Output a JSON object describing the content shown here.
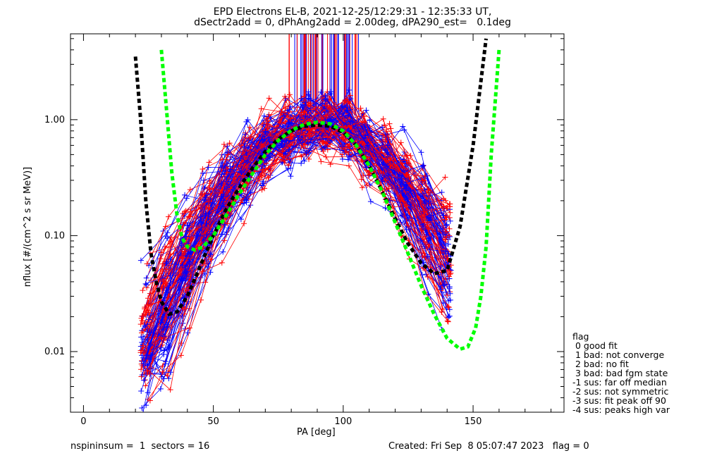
{
  "header": {
    "title_line1": "EPD Electrons EL-B, 2021-12-25/12:29:31 - 12:35:33 UT,",
    "title_line2": "dSectr2add = 0, dPhAng2add = 2.00deg, dPA290_est=   0.1deg"
  },
  "footer": {
    "left": "nspininsum =  1  sectors = 16",
    "right": "Created: Fri Sep  8 05:07:47 2023   flag = 0"
  },
  "legend": {
    "title": "flag",
    "items": [
      " 0 good fit",
      " 1 bad: not converge",
      " 2 bad: no fit",
      " 3 bad: bad fgm state",
      "-1 sus: far off median",
      "-2 sus: not symmetric",
      "-3 sus: fit peak off 90",
      "-4 sus: peaks high var"
    ]
  },
  "colors": {
    "series_red": "#ff0000",
    "series_blue": "#0000ff",
    "fit_black": "#000000",
    "fit_green": "#00ff00",
    "axis": "#000000"
  },
  "chart_data": {
    "type": "line",
    "title": "EPD Electrons EL-B, 2021-12-25/12:29:31 - 12:35:33 UT,",
    "subtitle": "dSectr2add = 0, dPhAng2add = 2.00deg, dPA290_est=   0.1deg",
    "xlabel": "PA [deg]",
    "ylabel": "nflux [#/(cm^2 s sr MeV)]",
    "xlim": [
      -5,
      185
    ],
    "ylim": [
      0.003,
      5.5
    ],
    "ylog": true,
    "xticks": [
      0,
      50,
      100,
      150
    ],
    "xtick_labels": [
      "0",
      "50",
      "100",
      "150"
    ],
    "yticks": [
      0.01,
      0.1,
      1.0
    ],
    "ytick_labels": [
      "0.01",
      "0.10",
      "1.00"
    ],
    "grid": false,
    "legend_position": "right-bottom",
    "series": [
      {
        "name": "black dashed fit",
        "style": "dashed",
        "x": [
          20,
          22,
          24,
          26,
          28,
          30,
          33,
          36,
          40,
          45,
          50,
          55,
          60,
          65,
          70,
          75,
          80,
          85,
          90,
          95,
          100,
          105,
          110,
          115,
          120,
          125,
          130,
          135,
          140,
          145,
          150,
          155
        ],
        "y": [
          3.5,
          1.0,
          0.2,
          0.07,
          0.04,
          0.027,
          0.021,
          0.022,
          0.03,
          0.055,
          0.1,
          0.17,
          0.26,
          0.38,
          0.53,
          0.68,
          0.8,
          0.88,
          0.9,
          0.88,
          0.78,
          0.6,
          0.4,
          0.24,
          0.14,
          0.085,
          0.058,
          0.047,
          0.05,
          0.12,
          0.6,
          5.0
        ]
      },
      {
        "name": "green dashed fit",
        "style": "dashed",
        "x": [
          30,
          32,
          34,
          36,
          38,
          40,
          43,
          46,
          50,
          55,
          60,
          65,
          70,
          75,
          80,
          85,
          90,
          95,
          100,
          105,
          110,
          115,
          120,
          125,
          130,
          135,
          140,
          145,
          148,
          151,
          153,
          155,
          157,
          160
        ],
        "y": [
          4.0,
          1.2,
          0.35,
          0.15,
          0.095,
          0.08,
          0.075,
          0.08,
          0.1,
          0.15,
          0.23,
          0.34,
          0.5,
          0.66,
          0.81,
          0.91,
          0.95,
          0.92,
          0.8,
          0.6,
          0.4,
          0.24,
          0.13,
          0.07,
          0.037,
          0.021,
          0.013,
          0.0105,
          0.011,
          0.016,
          0.03,
          0.08,
          0.5,
          4.0
        ]
      }
    ]
  }
}
